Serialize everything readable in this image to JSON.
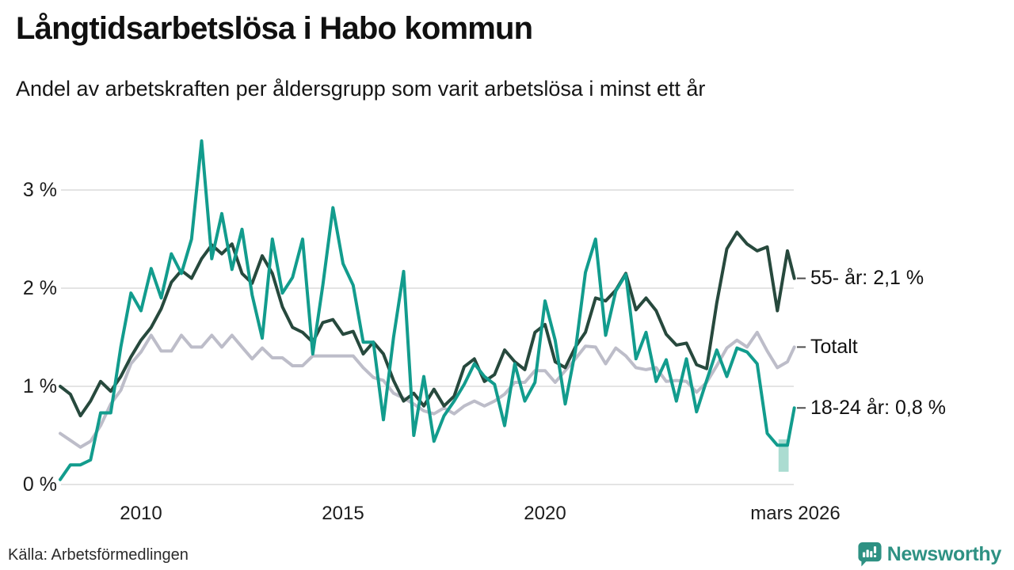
{
  "header": {
    "title": "Långtidsarbetslösa i Habo kommun",
    "subtitle": "Andel av arbetskraften per åldersgrupp som varit arbetslösa i minst ett år"
  },
  "footer": {
    "source": "Källa: Arbetsförmedlingen",
    "brand_name": "Newsworthy",
    "brand_icon": "bar-chart-speech-bubble",
    "brand_color": "#2e9183"
  },
  "chart_data": {
    "type": "line",
    "title": "Långtidsarbetslösa i Habo kommun",
    "subtitle": "Andel av arbetskraften per åldersgrupp som varit arbetslösa i minst ett år",
    "grid": "horizontal",
    "legend_position": "right-end-labels",
    "x_range": [
      2008.0,
      2026.17
    ],
    "y_range": [
      0,
      3.6
    ],
    "y_unit": "%",
    "y_ticks": [
      {
        "value": 0,
        "label": "0 %"
      },
      {
        "value": 1,
        "label": "1 %"
      },
      {
        "value": 2,
        "label": "2 %"
      },
      {
        "value": 3,
        "label": "3 %"
      }
    ],
    "x_ticks": [
      {
        "value": 2010,
        "label": "2010"
      },
      {
        "value": 2015,
        "label": "2015"
      },
      {
        "value": 2020,
        "label": "2020"
      },
      {
        "value": 2026.17,
        "label": "mars 2026"
      }
    ],
    "x": [
      2008,
      2008.25,
      2008.5,
      2008.75,
      2009,
      2009.25,
      2009.5,
      2009.75,
      2010,
      2010.25,
      2010.5,
      2010.75,
      2011,
      2011.25,
      2011.5,
      2011.75,
      2012,
      2012.25,
      2012.5,
      2012.75,
      2013,
      2013.25,
      2013.5,
      2013.75,
      2014,
      2014.25,
      2014.5,
      2014.75,
      2015,
      2015.25,
      2015.5,
      2015.75,
      2016,
      2016.25,
      2016.5,
      2016.75,
      2017,
      2017.25,
      2017.5,
      2017.75,
      2018,
      2018.25,
      2018.5,
      2018.75,
      2019,
      2019.25,
      2019.5,
      2019.75,
      2020,
      2020.25,
      2020.5,
      2020.75,
      2021,
      2021.25,
      2021.5,
      2021.75,
      2022,
      2022.25,
      2022.5,
      2022.75,
      2023,
      2023.25,
      2023.5,
      2023.75,
      2024,
      2024.25,
      2024.5,
      2024.75,
      2025,
      2025.25,
      2025.5,
      2025.75,
      2026,
      2026.17
    ],
    "series": [
      {
        "name": "Totalt",
        "color": "#bdbdc9",
        "end_label": "Totalt",
        "end_value": 1.4,
        "values": [
          0.52,
          0.45,
          0.38,
          0.44,
          0.6,
          0.82,
          0.96,
          1.23,
          1.35,
          1.52,
          1.36,
          1.36,
          1.52,
          1.4,
          1.4,
          1.52,
          1.4,
          1.52,
          1.4,
          1.28,
          1.39,
          1.29,
          1.29,
          1.21,
          1.21,
          1.31,
          1.31,
          1.31,
          1.31,
          1.31,
          1.19,
          1.09,
          1.06,
          0.93,
          0.88,
          0.82,
          0.75,
          0.72,
          0.78,
          0.72,
          0.8,
          0.85,
          0.8,
          0.85,
          0.92,
          1.04,
          1.04,
          1.16,
          1.16,
          1.04,
          1.16,
          1.28,
          1.41,
          1.4,
          1.23,
          1.39,
          1.31,
          1.19,
          1.17,
          1.19,
          1.05,
          1.06,
          1.05,
          0.94,
          1.04,
          1.21,
          1.39,
          1.47,
          1.4,
          1.55,
          1.36,
          1.19,
          1.25,
          1.4
        ]
      },
      {
        "name": "55- år",
        "color": "#27493d",
        "end_label": "55- år: 2,1 %",
        "end_value": 2.1,
        "values": [
          1.0,
          0.92,
          0.7,
          0.85,
          1.05,
          0.95,
          1.1,
          1.3,
          1.47,
          1.6,
          1.79,
          2.06,
          2.18,
          2.1,
          2.3,
          2.44,
          2.35,
          2.45,
          2.15,
          2.05,
          2.33,
          2.15,
          1.81,
          1.6,
          1.55,
          1.45,
          1.65,
          1.68,
          1.53,
          1.56,
          1.33,
          1.45,
          1.33,
          1.06,
          0.85,
          0.93,
          0.8,
          0.97,
          0.8,
          0.9,
          1.2,
          1.28,
          1.05,
          1.12,
          1.37,
          1.25,
          1.17,
          1.55,
          1.63,
          1.25,
          1.19,
          1.4,
          1.55,
          1.9,
          1.87,
          1.98,
          2.15,
          1.78,
          1.9,
          1.77,
          1.53,
          1.42,
          1.44,
          1.22,
          1.18,
          1.85,
          2.4,
          2.57,
          2.45,
          2.38,
          2.42,
          1.77,
          2.38,
          2.1
        ]
      },
      {
        "name": "18-24 år",
        "color": "#129c8d",
        "end_label": "18-24 år: 0,8 %",
        "end_value": 0.8,
        "values": [
          0.05,
          0.2,
          0.2,
          0.25,
          0.73,
          0.73,
          1.4,
          1.95,
          1.77,
          2.2,
          1.9,
          2.35,
          2.15,
          2.5,
          3.5,
          2.3,
          2.76,
          2.19,
          2.6,
          1.93,
          1.49,
          2.5,
          1.95,
          2.11,
          2.5,
          1.33,
          2.03,
          2.82,
          2.25,
          2.03,
          1.45,
          1.45,
          0.66,
          1.5,
          2.17,
          0.5,
          1.1,
          0.44,
          0.7,
          0.85,
          1.02,
          1.23,
          1.1,
          1.02,
          0.6,
          1.23,
          0.85,
          1.04,
          1.87,
          1.47,
          0.82,
          1.36,
          2.16,
          2.5,
          1.52,
          1.97,
          2.14,
          1.28,
          1.55,
          1.05,
          1.27,
          0.85,
          1.28,
          0.74,
          1.06,
          1.37,
          1.1,
          1.39,
          1.35,
          1.23,
          0.52,
          0.4,
          0.4,
          0.78
        ]
      }
    ],
    "preliminary_band": {
      "color": "#abdcd1",
      "x_start": 2025.78,
      "x_end": 2026.03,
      "v_top": 0.46,
      "v_bottom": 0.13
    }
  }
}
